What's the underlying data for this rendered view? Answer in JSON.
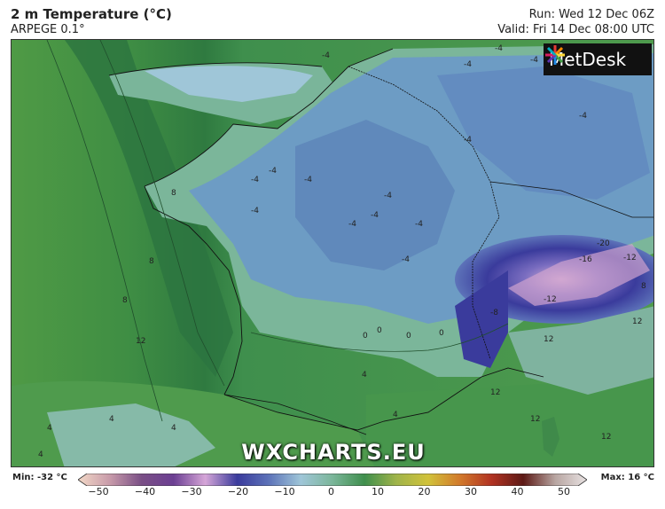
{
  "header": {
    "title": "2 m Temperature (°C)",
    "model": "ARPEGE 0.1°",
    "run": "Run: Wed 12 Dec 06Z",
    "valid": "Valid: Fri 14 Dec 08:00 UTC"
  },
  "logo": {
    "text": "MetDesk"
  },
  "watermark": "WXCHARTS.EU",
  "legend": {
    "min_label": "Min: -32 °C",
    "max_label": "Max: 16 °C",
    "ticks": [
      "−50",
      "−40",
      "−30",
      "−20",
      "−10",
      "0",
      "10",
      "20",
      "30",
      "40",
      "50"
    ],
    "colors": [
      "#f3d9c7",
      "#c79aa9",
      "#7a4f86",
      "#6c3f93",
      "#d6a6d8",
      "#3a3b9c",
      "#5d73b9",
      "#9fc6d8",
      "#7bb69a",
      "#3f8f4d",
      "#9fb44a",
      "#d1c23a",
      "#d27a2b",
      "#b13222",
      "#5d1a16",
      "#b8a6a2",
      "#e8e2e2"
    ]
  },
  "map_labels": [
    "-4",
    "-4",
    "-4",
    "-4",
    "-4",
    "-4",
    "-4",
    "-4",
    "-4",
    "-4",
    "-4",
    "-4",
    "-4",
    "-4",
    "-4",
    "8",
    "8",
    "8",
    "8",
    "12",
    "12",
    "12",
    "12",
    "12",
    "12",
    "0",
    "0",
    "0",
    "0",
    "4",
    "4",
    "4",
    "4",
    "4",
    "4",
    "-8",
    "-12",
    "-16",
    "-20",
    "-12"
  ]
}
